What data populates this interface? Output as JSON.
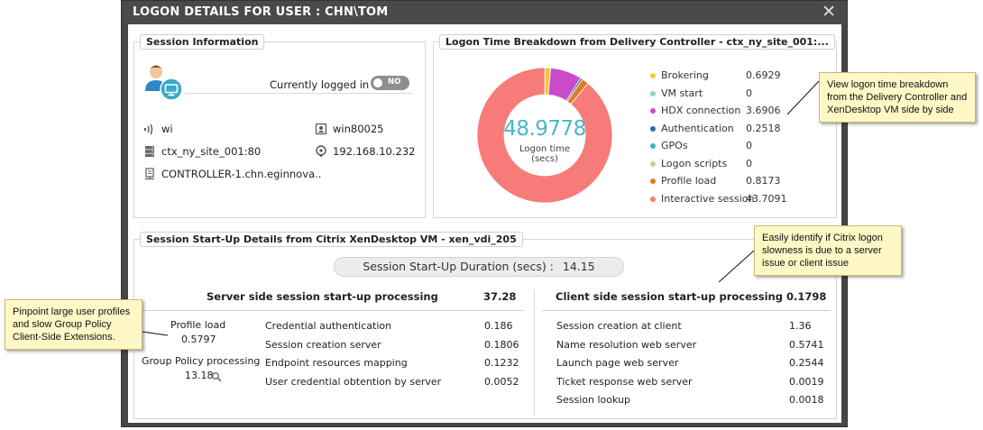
{
  "dialog": {
    "title": "LOGON DETAILS FOR USER : CHN\\TOM",
    "close_icon": "close-icon"
  },
  "session_info": {
    "legend": "Session Information",
    "logged_in_label": "Currently logged in",
    "logged_in_toggle": "NO",
    "client": "wi",
    "machine": "win80025",
    "site": "ctx_ny_site_001:80",
    "ip": "192.168.10.232",
    "controller": "CONTROLLER-1.chn.eginnova.."
  },
  "logon_breakdown": {
    "legend": "Logon Time Breakdown from Delivery Controller - ctx_ny_site_001:...",
    "total": "48.9778",
    "total_label_line1": "Logon time",
    "total_label_line2": "(secs)",
    "items": [
      {
        "name": "Brokering",
        "value": "0.6929",
        "color": "#f5c542"
      },
      {
        "name": "VM start",
        "value": "0",
        "color": "#8fd5c4"
      },
      {
        "name": "HDX connection",
        "value": "3.6906",
        "color": "#c94bc9"
      },
      {
        "name": "Authentication",
        "value": "0.2518",
        "color": "#2e6e9e"
      },
      {
        "name": "GPOs",
        "value": "0",
        "color": "#3bb3c3"
      },
      {
        "name": "Logon scripts",
        "value": "0",
        "color": "#b8d98a"
      },
      {
        "name": "Profile load",
        "value": "0.8173",
        "color": "#e07b22"
      },
      {
        "name": "Interactive session",
        "value": "43.7091",
        "color": "#f77b78"
      }
    ]
  },
  "chart_data": {
    "type": "pie",
    "categories": [
      "Brokering",
      "VM start",
      "HDX connection",
      "Authentication",
      "GPOs",
      "Logon scripts",
      "Profile load",
      "Interactive session"
    ],
    "values": [
      0.6929,
      0,
      3.6906,
      0.2518,
      0,
      0,
      0.8173,
      43.7091
    ],
    "title": "Logon Time Breakdown from Delivery Controller - ctx_ny_site_001:..."
  },
  "startup": {
    "legend": "Session Start-Up Details from Citrix XenDesktop VM - xen_vdi_205",
    "duration_label": "Session Start-Up Duration (secs) :",
    "duration_value": "14.15",
    "server_header": "Server side session start-up processing",
    "server_total": "37.28",
    "client_header": "Client side session start-up processing",
    "client_total": "0.1798",
    "profile_load_label": "Profile load",
    "profile_load_value": "0.5797",
    "gp_label": "Group Policy processing",
    "gp_value": "13.18",
    "server_rows": [
      {
        "label": "Credential authentication",
        "value": "0.186"
      },
      {
        "label": "Session creation server",
        "value": "0.1806"
      },
      {
        "label": "Endpoint resources mapping",
        "value": "0.1232"
      },
      {
        "label": "User credential obtention by server",
        "value": "0.0052"
      }
    ],
    "client_rows": [
      {
        "label": "Session creation at client",
        "value": "1.36"
      },
      {
        "label": "Name resolution web server",
        "value": "0.5741"
      },
      {
        "label": "Launch page web server",
        "value": "0.2544"
      },
      {
        "label": "Ticket response web server",
        "value": "0.0019"
      },
      {
        "label": "Session lookup",
        "value": "0.0018"
      }
    ]
  },
  "callouts": {
    "logon": "View logon time breakdown from the Delivery Controller and XenDesktop VM side by side",
    "slowness": "Easily identify if Citrix logon slowness is due to a server issue or client issue",
    "profiles": "Pinpoint large user profiles and slow Group Policy Client-Side Extensions."
  }
}
